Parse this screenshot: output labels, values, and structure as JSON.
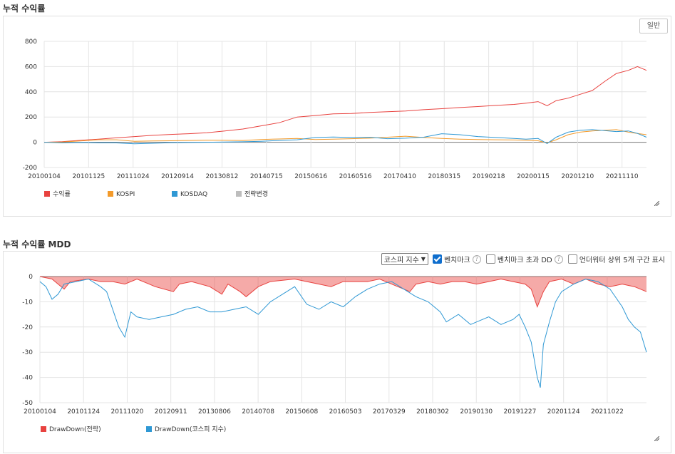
{
  "section1": {
    "title": "누적 수익률",
    "button_label": "일반",
    "chart_data": {
      "type": "line",
      "title": "누적 수익률",
      "ylim": [
        -200,
        800
      ],
      "yticks": [
        "800",
        "600",
        "400",
        "200",
        "0",
        "-200"
      ],
      "xticks": [
        "20100104",
        "20101125",
        "20111024",
        "20120914",
        "20130812",
        "20140715",
        "20150616",
        "20160516",
        "20170410",
        "20180315",
        "20190218",
        "20200115",
        "20201210",
        "20211110"
      ],
      "legend": [
        {
          "name": "수익률",
          "color": "#e8423f"
        },
        {
          "name": "KOSPI",
          "color": "#f39a2a"
        },
        {
          "name": "KOSDAQ",
          "color": "#2f98d4"
        },
        {
          "name": "전략변경",
          "color": "#bdbdbd"
        }
      ],
      "series": [
        {
          "name": "수익률",
          "color": "#e8423f",
          "points": [
            [
              0,
              0
            ],
            [
              3,
              5
            ],
            [
              6,
              15
            ],
            [
              9,
              25
            ],
            [
              12,
              35
            ],
            [
              15,
              45
            ],
            [
              18,
              55
            ],
            [
              21,
              62
            ],
            [
              24,
              68
            ],
            [
              27,
              75
            ],
            [
              30,
              90
            ],
            [
              33,
              105
            ],
            [
              36,
              130
            ],
            [
              39,
              155
            ],
            [
              42,
              200
            ],
            [
              45,
              212
            ],
            [
              48,
              225
            ],
            [
              51,
              228
            ],
            [
              54,
              236
            ],
            [
              57,
              242
            ],
            [
              60,
              248
            ],
            [
              63,
              258
            ],
            [
              66,
              266
            ],
            [
              69,
              275
            ],
            [
              72,
              283
            ],
            [
              75,
              292
            ],
            [
              78,
              300
            ],
            [
              80,
              310
            ],
            [
              82,
              322
            ],
            [
              83.5,
              290
            ],
            [
              85,
              330
            ],
            [
              87,
              350
            ],
            [
              89,
              380
            ],
            [
              91,
              410
            ],
            [
              93,
              480
            ],
            [
              95,
              545
            ],
            [
              97,
              570
            ],
            [
              98.5,
              600
            ],
            [
              100,
              570
            ]
          ]
        },
        {
          "name": "KOSPI",
          "color": "#f39a2a",
          "points": [
            [
              0,
              0
            ],
            [
              3,
              2
            ],
            [
              6,
              10
            ],
            [
              9,
              20
            ],
            [
              12,
              20
            ],
            [
              15,
              8
            ],
            [
              18,
              10
            ],
            [
              21,
              12
            ],
            [
              24,
              14
            ],
            [
              27,
              16
            ],
            [
              30,
              15
            ],
            [
              33,
              14
            ],
            [
              36,
              22
            ],
            [
              39,
              26
            ],
            [
              42,
              30
            ],
            [
              45,
              22
            ],
            [
              48,
              25
            ],
            [
              51,
              28
            ],
            [
              54,
              32
            ],
            [
              57,
              40
            ],
            [
              60,
              48
            ],
            [
              63,
              38
            ],
            [
              66,
              30
            ],
            [
              69,
              25
            ],
            [
              72,
              22
            ],
            [
              75,
              20
            ],
            [
              78,
              18
            ],
            [
              80,
              15
            ],
            [
              82,
              12
            ],
            [
              83.5,
              -5
            ],
            [
              85,
              20
            ],
            [
              87,
              60
            ],
            [
              89,
              80
            ],
            [
              91,
              90
            ],
            [
              93,
              95
            ],
            [
              95,
              100
            ],
            [
              97,
              80
            ],
            [
              98.5,
              70
            ],
            [
              100,
              60
            ]
          ]
        },
        {
          "name": "KOSDAQ",
          "color": "#2f98d4",
          "points": [
            [
              0,
              0
            ],
            [
              3,
              -5
            ],
            [
              6,
              -2
            ],
            [
              9,
              -5
            ],
            [
              12,
              -5
            ],
            [
              15,
              -12
            ],
            [
              18,
              -8
            ],
            [
              21,
              -4
            ],
            [
              24,
              -2
            ],
            [
              27,
              0
            ],
            [
              30,
              2
            ],
            [
              33,
              4
            ],
            [
              36,
              8
            ],
            [
              39,
              14
            ],
            [
              42,
              20
            ],
            [
              45,
              38
            ],
            [
              48,
              42
            ],
            [
              51,
              38
            ],
            [
              54,
              40
            ],
            [
              57,
              28
            ],
            [
              60,
              32
            ],
            [
              63,
              40
            ],
            [
              66,
              68
            ],
            [
              69,
              60
            ],
            [
              72,
              45
            ],
            [
              75,
              38
            ],
            [
              78,
              30
            ],
            [
              80,
              25
            ],
            [
              82,
              30
            ],
            [
              83.5,
              -10
            ],
            [
              85,
              40
            ],
            [
              87,
              80
            ],
            [
              89,
              95
            ],
            [
              91,
              100
            ],
            [
              93,
              92
            ],
            [
              95,
              85
            ],
            [
              97,
              90
            ],
            [
              98.5,
              70
            ],
            [
              100,
              40
            ]
          ]
        }
      ]
    }
  },
  "section2": {
    "title": "누적 수익률 MDD",
    "select_value": "코스피 지수",
    "checkbox_benchmark": "벤치마크",
    "checkbox_benchmark_dd": "벤치마크 초과 DD",
    "checkbox_underwater": "언더워터 상위 5개 구간 표시",
    "chart_data": {
      "type": "area",
      "title": "누적 수익률 MDD",
      "ylim": [
        -50,
        0
      ],
      "yticks": [
        "0",
        "-10",
        "-20",
        "-30",
        "-40",
        "-50"
      ],
      "xticks": [
        "20100104",
        "20101124",
        "20111020",
        "20120911",
        "20130806",
        "20140708",
        "20150608",
        "20160503",
        "20170329",
        "20180302",
        "20190130",
        "20191227",
        "20201124",
        "20211022"
      ],
      "legend": [
        {
          "name": "DrawDown(전략)",
          "color": "#e8423f"
        },
        {
          "name": "DrawDown(코스피 지수)",
          "color": "#2f98d4"
        }
      ],
      "series": [
        {
          "name": "DrawDown(전략)",
          "color": "#e8423f",
          "points": [
            [
              0,
              0
            ],
            [
              2,
              -1
            ],
            [
              3,
              -3
            ],
            [
              4,
              -5
            ],
            [
              5,
              -2
            ],
            [
              8,
              -1
            ],
            [
              10,
              -2
            ],
            [
              12,
              -2
            ],
            [
              14,
              -3
            ],
            [
              16,
              -1
            ],
            [
              18,
              -3
            ],
            [
              19,
              -4
            ],
            [
              22,
              -6
            ],
            [
              23,
              -3
            ],
            [
              25,
              -2
            ],
            [
              28,
              -4
            ],
            [
              30,
              -7
            ],
            [
              31,
              -3
            ],
            [
              33,
              -6
            ],
            [
              34,
              -8
            ],
            [
              36,
              -4
            ],
            [
              38,
              -2
            ],
            [
              42,
              -1
            ],
            [
              44,
              -2
            ],
            [
              46,
              -3
            ],
            [
              48,
              -4
            ],
            [
              50,
              -2
            ],
            [
              52,
              -2
            ],
            [
              54,
              -2
            ],
            [
              56,
              -1
            ],
            [
              59,
              -4
            ],
            [
              61,
              -6
            ],
            [
              62,
              -3
            ],
            [
              64,
              -2
            ],
            [
              66,
              -3
            ],
            [
              68,
              -2
            ],
            [
              70,
              -2
            ],
            [
              72,
              -3
            ],
            [
              74,
              -2
            ],
            [
              76,
              -1
            ],
            [
              78,
              -2
            ],
            [
              80,
              -3
            ],
            [
              81,
              -5
            ],
            [
              82,
              -12
            ],
            [
              83,
              -6
            ],
            [
              84,
              -2
            ],
            [
              86,
              -1
            ],
            [
              88,
              -3
            ],
            [
              90,
              -1
            ],
            [
              92,
              -3
            ],
            [
              94,
              -4
            ],
            [
              96,
              -3
            ],
            [
              98,
              -4
            ],
            [
              100,
              -6
            ]
          ]
        },
        {
          "name": "DrawDown(코스피 지수)",
          "color": "#2f98d4",
          "points": [
            [
              0,
              -2
            ],
            [
              1,
              -4
            ],
            [
              2,
              -9
            ],
            [
              3,
              -7
            ],
            [
              4,
              -3
            ],
            [
              6,
              -2
            ],
            [
              8,
              -1
            ],
            [
              10,
              -4
            ],
            [
              11,
              -6
            ],
            [
              13,
              -20
            ],
            [
              14,
              -24
            ],
            [
              15,
              -14
            ],
            [
              16,
              -16
            ],
            [
              18,
              -17
            ],
            [
              20,
              -16
            ],
            [
              22,
              -15
            ],
            [
              24,
              -13
            ],
            [
              26,
              -12
            ],
            [
              28,
              -14
            ],
            [
              30,
              -14
            ],
            [
              32,
              -13
            ],
            [
              34,
              -12
            ],
            [
              36,
              -15
            ],
            [
              38,
              -10
            ],
            [
              40,
              -7
            ],
            [
              42,
              -4
            ],
            [
              44,
              -11
            ],
            [
              46,
              -13
            ],
            [
              48,
              -10
            ],
            [
              50,
              -12
            ],
            [
              52,
              -8
            ],
            [
              54,
              -5
            ],
            [
              56,
              -3
            ],
            [
              58,
              -2
            ],
            [
              60,
              -5
            ],
            [
              62,
              -8
            ],
            [
              64,
              -10
            ],
            [
              66,
              -14
            ],
            [
              67,
              -18
            ],
            [
              69,
              -15
            ],
            [
              71,
              -19
            ],
            [
              72,
              -18
            ],
            [
              74,
              -16
            ],
            [
              76,
              -19
            ],
            [
              78,
              -17
            ],
            [
              79,
              -15
            ],
            [
              80,
              -20
            ],
            [
              81,
              -26
            ],
            [
              82,
              -40
            ],
            [
              82.5,
              -44
            ],
            [
              83,
              -27
            ],
            [
              84,
              -18
            ],
            [
              85,
              -10
            ],
            [
              86,
              -6
            ],
            [
              88,
              -3
            ],
            [
              90,
              -1
            ],
            [
              92,
              -2
            ],
            [
              94,
              -5
            ],
            [
              96,
              -12
            ],
            [
              97,
              -17
            ],
            [
              98,
              -20
            ],
            [
              99,
              -22
            ],
            [
              100,
              -30
            ]
          ]
        }
      ]
    }
  }
}
